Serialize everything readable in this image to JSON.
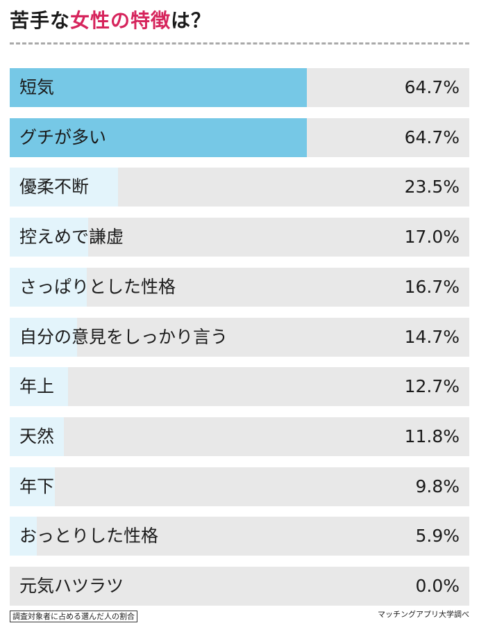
{
  "title": {
    "prefix": "苦手な",
    "highlight": "女性の特徴",
    "suffix": "は？"
  },
  "colors": {
    "highlight_text": "#d6245c",
    "bar_top": "#76c8e6",
    "bar_other": "#e3f4fb",
    "track": "#e8e8e8",
    "divider": "#a9a9a9"
  },
  "chart_data": {
    "type": "bar",
    "orientation": "horizontal",
    "title": "苦手な女性の特徴は？",
    "categories": [
      "短気",
      "グチが多い",
      "優柔不断",
      "控えめで謙虚",
      "さっぱりとした性格",
      "自分の意見をしっかり言う",
      "年上",
      "天然",
      "年下",
      "おっとりした性格",
      "元気ハツラツ"
    ],
    "values": [
      64.7,
      64.7,
      23.5,
      17.0,
      16.7,
      14.7,
      12.7,
      11.8,
      9.8,
      5.9,
      0.0
    ],
    "value_labels": [
      "64.7%",
      "64.7%",
      "23.5%",
      "17.0%",
      "16.7%",
      "14.7%",
      "12.7%",
      "11.8%",
      "9.8%",
      "5.9%",
      "0.0%"
    ],
    "xlim": [
      0,
      100
    ],
    "grid": false,
    "legend": "none"
  },
  "footer": {
    "note": "調査対象者に占める選んだ人の割合",
    "source": "マッチングアプリ大学調べ"
  }
}
